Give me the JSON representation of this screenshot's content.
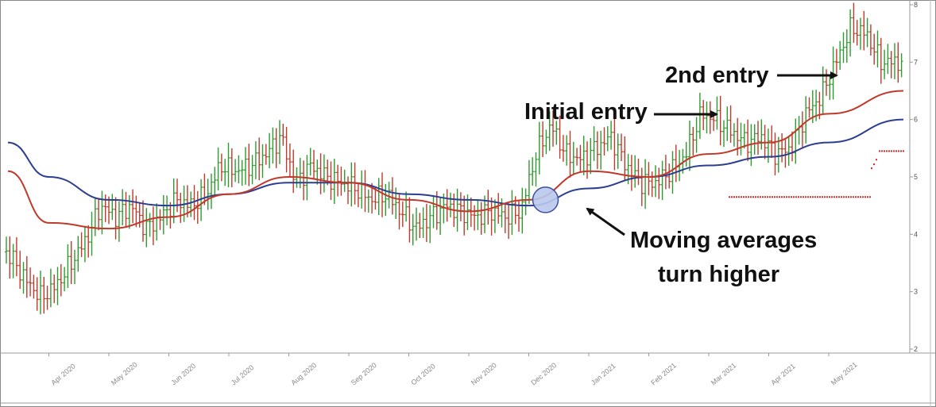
{
  "chart_data": {
    "type": "ohlc",
    "title": "",
    "xlabel": "",
    "ylabel": "",
    "ylim": [
      2,
      8
    ],
    "y_ticks": [
      "2",
      "3",
      "4",
      "5",
      "6",
      "7",
      "8"
    ],
    "x_ticks": [
      "Apr 2020",
      "May 2020",
      "Jun 2020",
      "Jul 2020",
      "Aug 2020",
      "Sep 2020",
      "Oct 2020",
      "Nov 2020",
      "Dec 2020",
      "Jan 2021",
      "Feb 2021",
      "Mar 2021",
      "Apr 2021",
      "May 2021"
    ],
    "grid": false,
    "colors": {
      "up": "#2e9b2e",
      "down": "#c0392b",
      "ma_fast": "#c0392b",
      "ma_slow": "#2c3e8f",
      "stop": "#cc2a2a",
      "marker": "#b9c8ec"
    },
    "price_series": [
      {
        "date": "Mar 2020",
        "close": 3.9
      },
      {
        "date": "Mar 2020",
        "close": 3.6
      },
      {
        "date": "Mar 2020",
        "close": 3.2
      },
      {
        "date": "Mar 2020",
        "close": 2.9
      },
      {
        "date": "Apr 2020",
        "close": 3.1
      },
      {
        "date": "Apr 2020",
        "close": 3.5
      },
      {
        "date": "Apr 2020",
        "close": 3.9
      },
      {
        "date": "Apr 2020",
        "close": 4.5
      },
      {
        "date": "May 2020",
        "close": 4.3
      },
      {
        "date": "May 2020",
        "close": 4.5
      },
      {
        "date": "May 2020",
        "close": 4.1
      },
      {
        "date": "May 2020",
        "close": 4.3
      },
      {
        "date": "Jun 2020",
        "close": 4.6
      },
      {
        "date": "Jun 2020",
        "close": 4.5
      },
      {
        "date": "Jun 2020",
        "close": 4.7
      },
      {
        "date": "Jun 2020",
        "close": 5.2
      },
      {
        "date": "Jul 2020",
        "close": 5.1
      },
      {
        "date": "Jul 2020",
        "close": 5.2
      },
      {
        "date": "Jul 2020",
        "close": 5.4
      },
      {
        "date": "Jul 2020",
        "close": 5.7
      },
      {
        "date": "Aug 2020",
        "close": 4.9
      },
      {
        "date": "Aug 2020",
        "close": 5.2
      },
      {
        "date": "Aug 2020",
        "close": 5.0
      },
      {
        "date": "Aug 2020",
        "close": 4.9
      },
      {
        "date": "Sep 2020",
        "close": 4.8
      },
      {
        "date": "Sep 2020",
        "close": 4.6
      },
      {
        "date": "Sep 2020",
        "close": 4.7
      },
      {
        "date": "Sep 2020",
        "close": 4.4
      },
      {
        "date": "Oct 2020",
        "close": 4.1
      },
      {
        "date": "Oct 2020",
        "close": 4.3
      },
      {
        "date": "Oct 2020",
        "close": 4.5
      },
      {
        "date": "Oct 2020",
        "close": 4.4
      },
      {
        "date": "Nov 2020",
        "close": 4.3
      },
      {
        "date": "Nov 2020",
        "close": 4.4
      },
      {
        "date": "Nov 2020",
        "close": 4.3
      },
      {
        "date": "Nov 2020",
        "close": 4.4
      },
      {
        "date": "Dec 2020",
        "close": 5.4
      },
      {
        "date": "Dec 2020",
        "close": 5.9
      },
      {
        "date": "Dec 2020",
        "close": 5.4
      },
      {
        "date": "Dec 2020",
        "close": 5.3
      },
      {
        "date": "Jan 2021",
        "close": 5.5
      },
      {
        "date": "Jan 2021",
        "close": 5.7
      },
      {
        "date": "Jan 2021",
        "close": 5.2
      },
      {
        "date": "Jan 2021",
        "close": 4.9
      },
      {
        "date": "Feb 2021",
        "close": 4.9
      },
      {
        "date": "Feb 2021",
        "close": 5.1
      },
      {
        "date": "Feb 2021",
        "close": 5.4
      },
      {
        "date": "Feb 2021",
        "close": 6.1
      },
      {
        "date": "Mar 2021",
        "close": 6.0
      },
      {
        "date": "Mar 2021",
        "close": 5.8
      },
      {
        "date": "Mar 2021",
        "close": 5.6
      },
      {
        "date": "Mar 2021",
        "close": 5.7
      },
      {
        "date": "Apr 2021",
        "close": 5.4
      },
      {
        "date": "Apr 2021",
        "close": 5.5
      },
      {
        "date": "Apr 2021",
        "close": 6.1
      },
      {
        "date": "Apr 2021",
        "close": 6.4
      },
      {
        "date": "May 2021",
        "close": 7.0
      },
      {
        "date": "May 2021",
        "close": 7.6
      },
      {
        "date": "May 2021",
        "close": 7.5
      },
      {
        "date": "May 2021",
        "close": 7.0
      }
    ],
    "ma_fast": [
      {
        "date": "Mar 2020",
        "value": 5.1
      },
      {
        "date": "Apr 2020",
        "value": 4.2
      },
      {
        "date": "May 2020",
        "value": 4.1
      },
      {
        "date": "Jun 2020",
        "value": 4.3
      },
      {
        "date": "Jul 2020",
        "value": 4.7
      },
      {
        "date": "Aug 2020",
        "value": 5.0
      },
      {
        "date": "Sep 2020",
        "value": 4.9
      },
      {
        "date": "Oct 2020",
        "value": 4.6
      },
      {
        "date": "Nov 2020",
        "value": 4.4
      },
      {
        "date": "Dec 2020",
        "value": 4.6
      },
      {
        "date": "Jan 2021",
        "value": 5.1
      },
      {
        "date": "Feb 2021",
        "value": 5.0
      },
      {
        "date": "Mar 2021",
        "value": 5.4
      },
      {
        "date": "Apr 2021",
        "value": 5.6
      },
      {
        "date": "May 2021",
        "value": 6.1
      },
      {
        "date": "May 2021",
        "value": 6.5
      }
    ],
    "ma_slow": [
      {
        "date": "Mar 2020",
        "value": 5.6
      },
      {
        "date": "Apr 2020",
        "value": 5.0
      },
      {
        "date": "May 2020",
        "value": 4.6
      },
      {
        "date": "Jun 2020",
        "value": 4.5
      },
      {
        "date": "Jul 2020",
        "value": 4.7
      },
      {
        "date": "Aug 2020",
        "value": 4.9
      },
      {
        "date": "Sep 2020",
        "value": 4.9
      },
      {
        "date": "Oct 2020",
        "value": 4.7
      },
      {
        "date": "Nov 2020",
        "value": 4.6
      },
      {
        "date": "Dec 2020",
        "value": 4.5
      },
      {
        "date": "Jan 2021",
        "value": 4.8
      },
      {
        "date": "Feb 2021",
        "value": 5.0
      },
      {
        "date": "Mar 2021",
        "value": 5.2
      },
      {
        "date": "Apr 2021",
        "value": 5.35
      },
      {
        "date": "May 2021",
        "value": 5.6
      },
      {
        "date": "May 2021",
        "value": 6.0
      }
    ],
    "stop_levels": [
      {
        "from": "Feb 2021",
        "to": "May 2021",
        "value": 4.65
      },
      {
        "from": "May 2021",
        "to": "May 2021",
        "value": 5.45
      }
    ],
    "marker": {
      "date": "Dec 2020",
      "value": 4.6
    },
    "annotations": [
      {
        "text": "2nd entry"
      },
      {
        "text": "Initial entry"
      },
      {
        "text": "Moving averages"
      },
      {
        "text": "turn higher"
      }
    ]
  }
}
